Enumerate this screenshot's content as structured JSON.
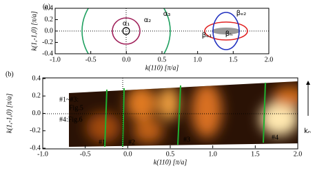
{
  "chart_data": [
    {
      "type": "contour",
      "xlabel": "k(110) [π/a]",
      "ylabel": "k(1,-1,0) [π/a]",
      "xlim": [
        -1,
        2
      ],
      "ylim": [
        -0.4,
        0.4
      ],
      "xticks": [
        {
          "value": -1,
          "label": "-1.0"
        },
        -0.5,
        {
          "value": 0,
          "label": "0.0"
        },
        0.5,
        {
          "value": 1,
          "label": "1.0"
        },
        1.5,
        {
          "value": 2,
          "label": "2.0"
        }
      ],
      "yticks": [
        0.4,
        0.2,
        {
          "value": 0,
          "label": "0.0"
        },
        -0.2,
        -0.4
      ],
      "annotations": [
        "(a)",
        "α₁",
        "α₂",
        "α₃",
        "βₑ₂",
        "βₑ₁",
        "βₕ"
      ]
    },
    {
      "type": "heatmap",
      "xlabel": "k(110) [π/a]",
      "ylabel": "k(1,-1,0) [π/a]",
      "xlim": [
        -1,
        2
      ],
      "ylim": [
        -0.4,
        0.4
      ],
      "xticks": [
        {
          "value": -1,
          "label": "-1.0"
        },
        -0.5,
        {
          "value": 0,
          "label": "0.0"
        },
        0.5,
        {
          "value": 1,
          "label": "1.0"
        },
        1.5,
        {
          "value": 2,
          "label": "2.0"
        }
      ],
      "yticks": [
        0.4,
        0.2,
        {
          "value": 0,
          "label": "0.0"
        },
        -0.2,
        -0.4
      ],
      "annotations": [
        "(b)",
        "#1~#3:",
        "Fig.5",
        "#4:Fig.6",
        "#1",
        "#2",
        "#3",
        "#4",
        "kₙ"
      ]
    }
  ]
}
